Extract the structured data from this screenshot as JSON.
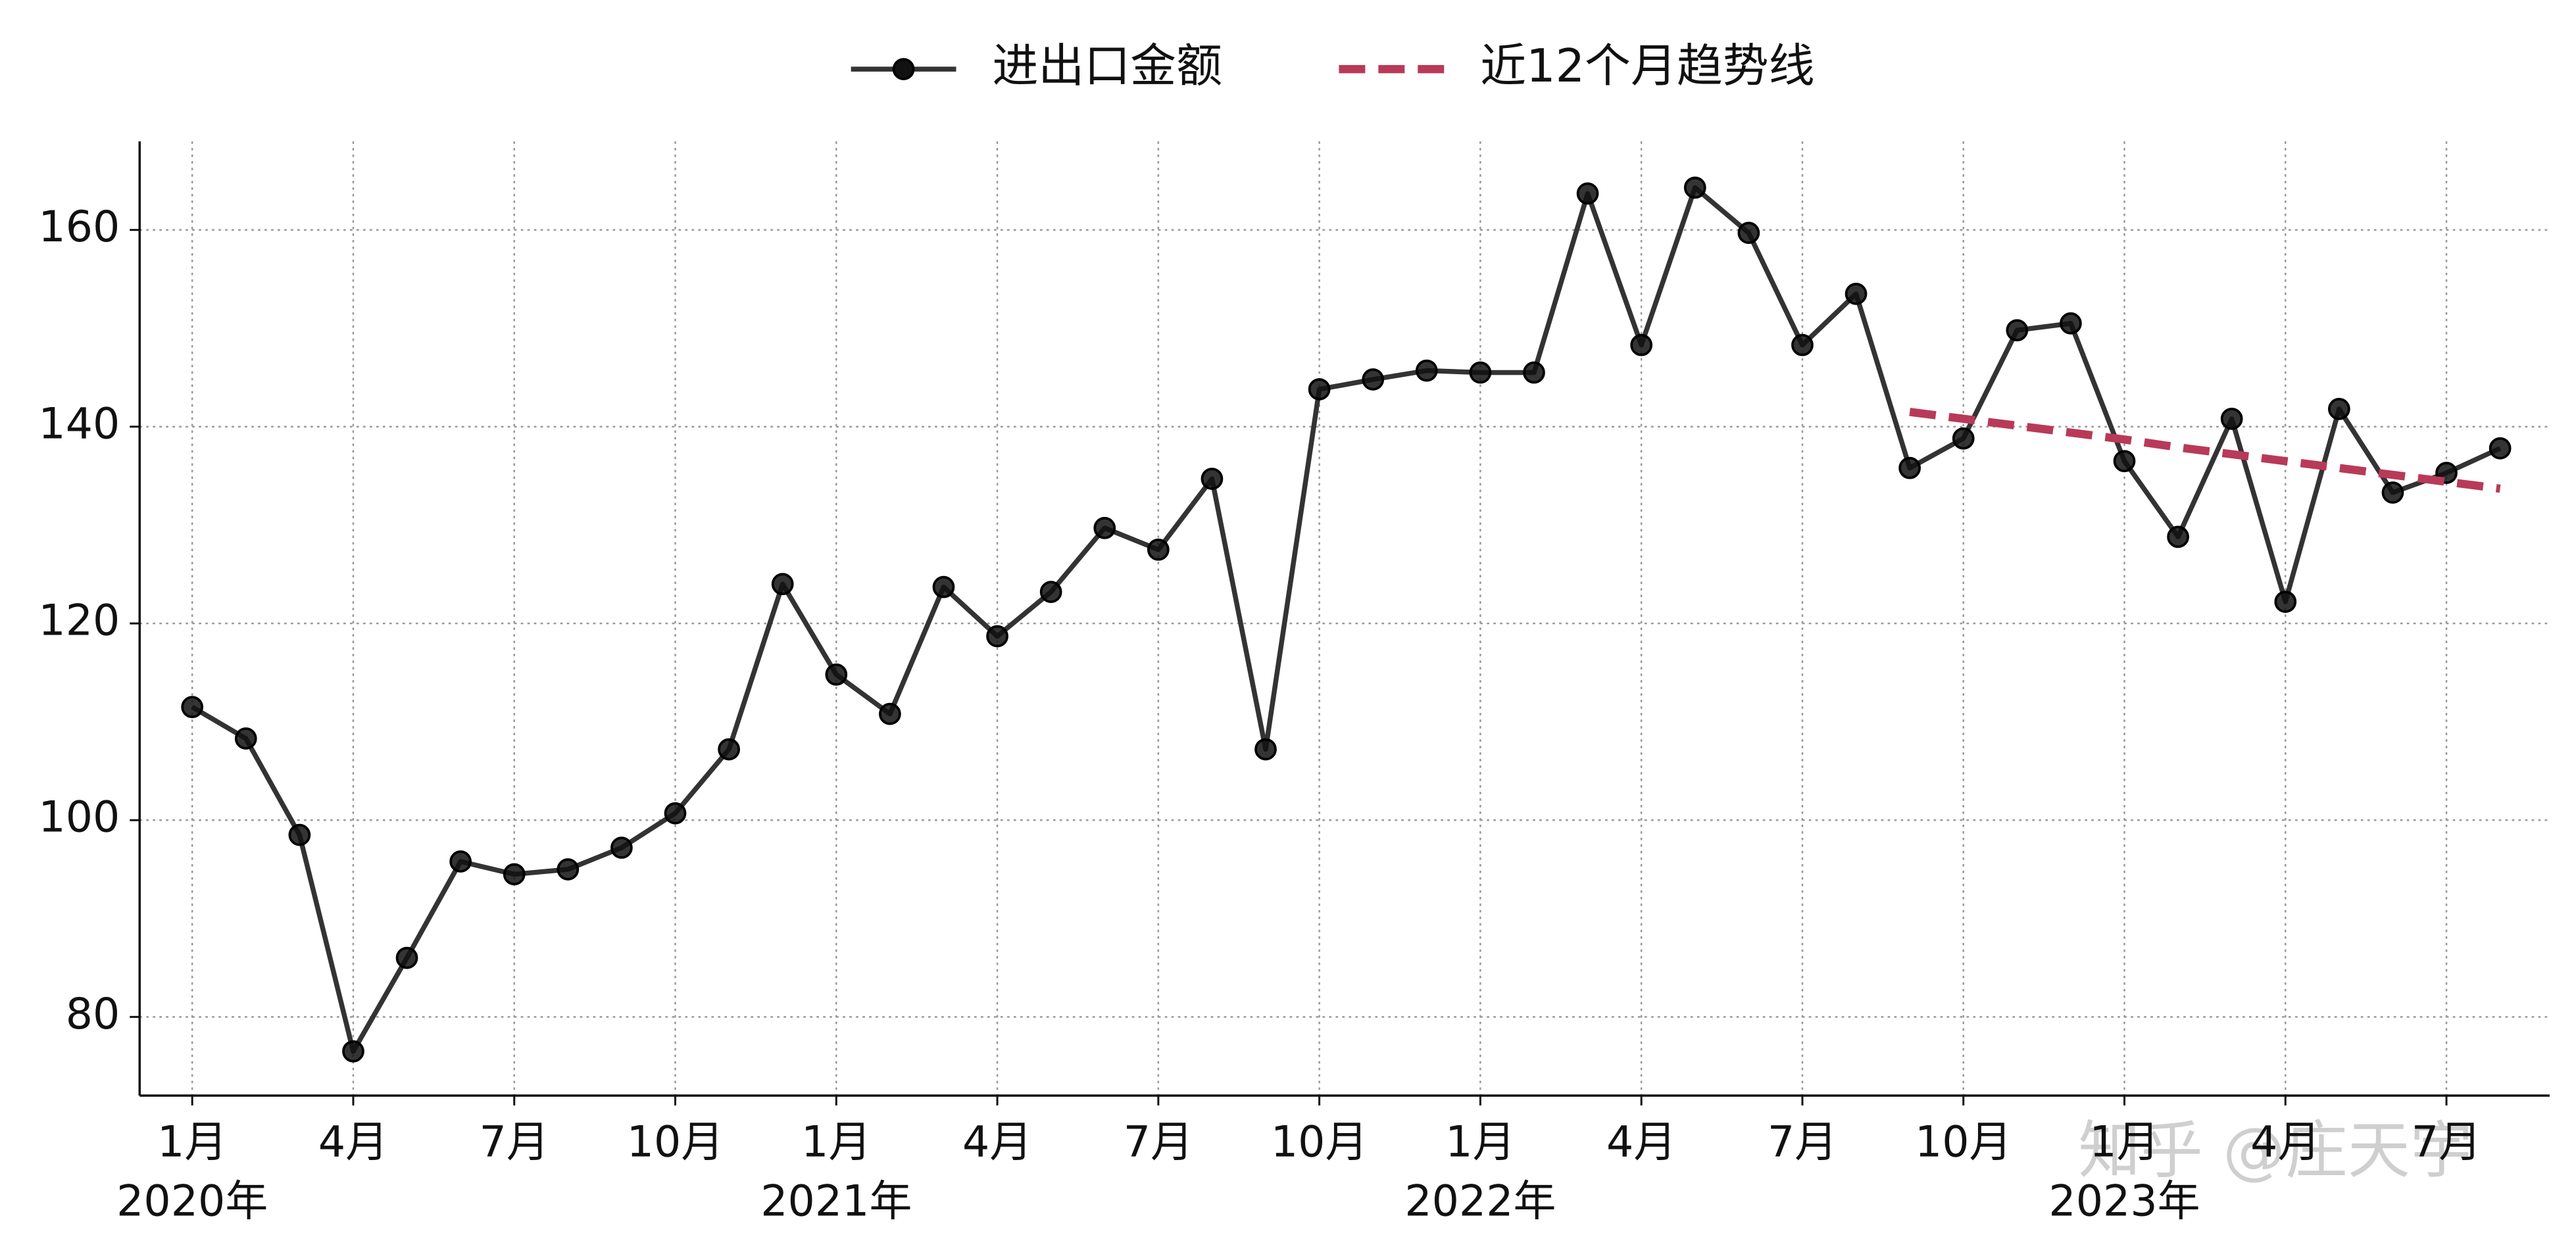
{
  "chart_data": {
    "type": "line",
    "categories": [
      "1月",
      null,
      null,
      "4月",
      null,
      null,
      "7月",
      null,
      null,
      "10月",
      null,
      null,
      "1月",
      null,
      null,
      "4月",
      null,
      null,
      "7月",
      null,
      null,
      "10月",
      null,
      null,
      "1月",
      null,
      null,
      "4月",
      null,
      null,
      "7月",
      null,
      null,
      "10月",
      null,
      null,
      "1月",
      null,
      null,
      "4月",
      null,
      null,
      "7月",
      null
    ],
    "years": [
      "2020年",
      "2021年",
      "2022年",
      "2023年"
    ],
    "series": [
      {
        "name": "进出口金额",
        "color": "#333333",
        "marker": true,
        "dashed": false,
        "values": [
          111.5,
          108.3,
          98.5,
          76.5,
          86,
          95.8,
          94.5,
          95,
          97.2,
          100.7,
          107.2,
          124,
          114.8,
          110.8,
          123.7,
          118.7,
          123.2,
          129.7,
          127.5,
          134.7,
          107.2,
          143.8,
          144.8,
          145.7,
          145.5,
          145.5,
          163.7,
          148.3,
          164.3,
          159.7,
          148.3,
          153.5,
          135.8,
          138.8,
          149.8,
          150.5,
          136.5,
          128.8,
          140.8,
          122.2,
          141.8,
          133.3,
          135.3,
          137.8
        ]
      },
      {
        "name": "近12个月趋势线",
        "color": "#b83a58",
        "marker": false,
        "dashed": true,
        "values": [
          null,
          null,
          null,
          null,
          null,
          null,
          null,
          null,
          null,
          null,
          null,
          null,
          null,
          null,
          null,
          null,
          null,
          null,
          null,
          null,
          null,
          null,
          null,
          null,
          null,
          null,
          null,
          null,
          null,
          null,
          null,
          null,
          141.5,
          140.8,
          140.1,
          139.4,
          138.7,
          137.9,
          137.2,
          136.5,
          135.8,
          135.1,
          134.4,
          133.7
        ]
      }
    ],
    "ylim": [
      72,
      169
    ],
    "yticks": [
      80,
      100,
      120,
      140,
      160
    ],
    "grid": true,
    "legend": "top",
    "watermark": "知乎 @庄天宇"
  }
}
